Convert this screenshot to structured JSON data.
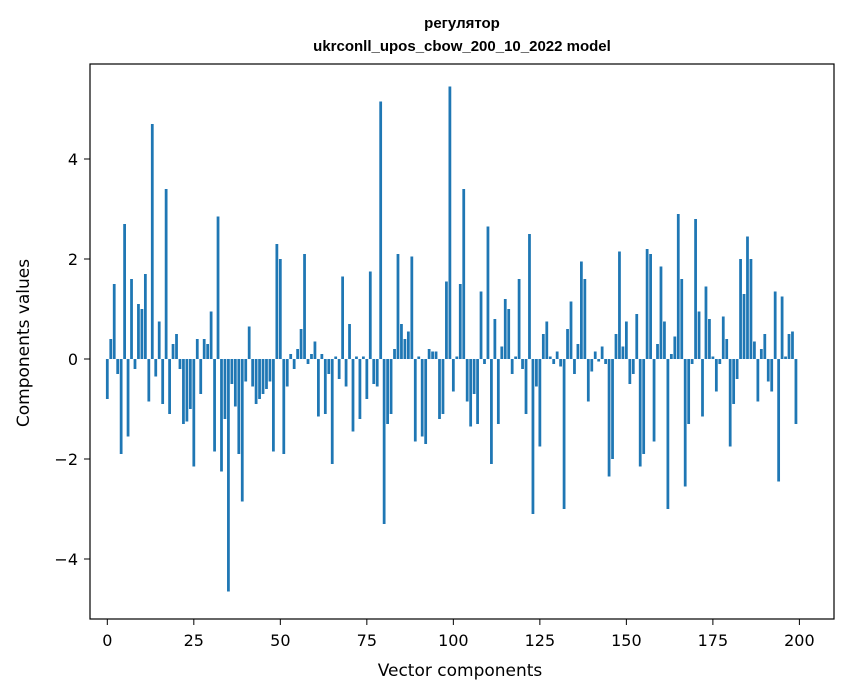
{
  "chart_data": {
    "type": "bar",
    "title_line1": "регулятор",
    "title_line2": "ukrconll_upos_cbow_200_10_2022 model",
    "xlabel": "Vector components",
    "ylabel": "Components values",
    "xlim": [
      -5,
      210
    ],
    "ylim": [
      -5.2,
      5.9
    ],
    "xticks": [
      0,
      25,
      50,
      75,
      100,
      125,
      150,
      175,
      200
    ],
    "yticks": [
      -4,
      -2,
      0,
      2,
      4
    ],
    "ytick_labels": [
      "−4",
      "−2",
      "0",
      "2",
      "4"
    ],
    "bar_color": "#1f77b4",
    "grid": false,
    "values": [
      -0.8,
      0.4,
      1.5,
      -0.3,
      -1.9,
      2.7,
      -1.55,
      1.6,
      -0.2,
      1.1,
      1.0,
      1.7,
      -0.85,
      4.7,
      -0.35,
      0.75,
      -0.9,
      3.4,
      -1.1,
      0.3,
      0.5,
      -0.2,
      -1.3,
      -1.25,
      -1.0,
      -2.15,
      0.4,
      -0.7,
      0.4,
      0.3,
      0.95,
      -1.85,
      2.85,
      -2.25,
      -1.2,
      -4.65,
      -0.5,
      -0.95,
      -1.9,
      -2.85,
      -0.45,
      0.65,
      -0.55,
      -0.9,
      -0.8,
      -0.7,
      -0.6,
      -0.45,
      -1.85,
      2.3,
      2.0,
      -1.9,
      -0.55,
      0.1,
      -0.2,
      0.2,
      0.6,
      2.1,
      -0.1,
      0.1,
      0.35,
      -1.15,
      0.1,
      -1.1,
      -0.3,
      -2.1,
      0.05,
      -0.4,
      1.65,
      -0.55,
      0.7,
      -1.45,
      0.05,
      -1.2,
      0.05,
      -0.8,
      1.75,
      -0.5,
      -0.55,
      5.15,
      -3.3,
      -1.3,
      -1.1,
      0.2,
      2.1,
      0.7,
      0.4,
      0.55,
      2.05,
      -1.65,
      0.05,
      -1.55,
      -1.7,
      0.2,
      0.15,
      0.15,
      -1.2,
      -1.1,
      1.55,
      5.45,
      -0.65,
      0.05,
      1.5,
      3.4,
      -0.85,
      -1.35,
      -0.7,
      -1.3,
      1.35,
      -0.1,
      2.65,
      -2.1,
      0.8,
      -1.3,
      0.25,
      1.2,
      1.0,
      -0.3,
      0.05,
      1.6,
      -0.2,
      -1.1,
      2.5,
      -3.1,
      -0.55,
      -1.75,
      0.5,
      0.75,
      0.05,
      -0.1,
      0.15,
      -0.15,
      -3.0,
      0.6,
      1.15,
      -0.3,
      0.3,
      1.95,
      1.6,
      -0.85,
      -0.25,
      0.15,
      -0.05,
      0.25,
      -0.1,
      -2.35,
      -2.0,
      0.5,
      2.15,
      0.25,
      0.75,
      -0.5,
      -0.3,
      0.9,
      -2.15,
      -1.9,
      2.2,
      2.1,
      -1.65,
      0.3,
      1.85,
      0.75,
      -3.0,
      0.1,
      0.45,
      2.9,
      1.6,
      -2.55,
      -1.3,
      -0.1,
      2.8,
      0.95,
      -1.15,
      1.45,
      0.8,
      0.05,
      -0.65,
      -0.1,
      0.85,
      0.4,
      -1.75,
      -0.9,
      -0.4,
      2.0,
      1.3,
      2.45,
      2.0,
      0.35,
      -0.85,
      0.2,
      0.5,
      -0.45,
      -0.65,
      1.35,
      -2.45,
      1.25,
      0.05,
      0.5,
      0.55,
      -1.3
    ]
  }
}
